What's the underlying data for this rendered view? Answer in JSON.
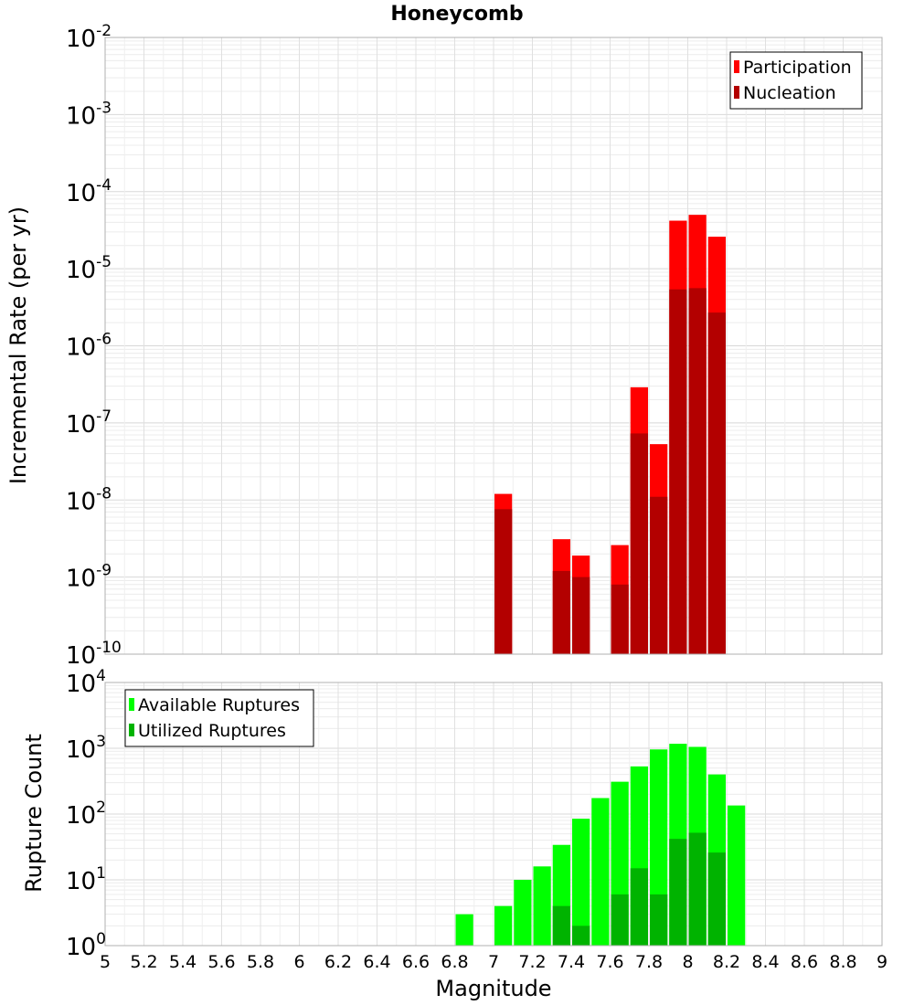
{
  "chart_data": [
    {
      "type": "bar",
      "title": "Honeycomb",
      "ylabel": "Incremental Rate (per yr)",
      "xlabel": "",
      "yscale": "log",
      "ylim_exp": [
        -10,
        -2
      ],
      "xlim": [
        5,
        9
      ],
      "bin_width": 0.1,
      "legend_position": "top-right",
      "grid": true,
      "series": [
        {
          "name": "Participation",
          "color": "#ff0000",
          "points": [
            {
              "x": 7.05,
              "y": 1.2e-08
            },
            {
              "x": 7.35,
              "y": 3.1e-09
            },
            {
              "x": 7.45,
              "y": 1.9e-09
            },
            {
              "x": 7.65,
              "y": 2.6e-09
            },
            {
              "x": 7.75,
              "y": 2.9e-07
            },
            {
              "x": 7.85,
              "y": 5.3e-08
            },
            {
              "x": 7.95,
              "y": 4.2e-05
            },
            {
              "x": 8.05,
              "y": 5e-05
            },
            {
              "x": 8.15,
              "y": 2.6e-05
            }
          ]
        },
        {
          "name": "Nucleation",
          "color": "#b30000",
          "points": [
            {
              "x": 7.05,
              "y": 7.6e-09
            },
            {
              "x": 7.35,
              "y": 1.2e-09
            },
            {
              "x": 7.45,
              "y": 1e-09
            },
            {
              "x": 7.65,
              "y": 8e-10
            },
            {
              "x": 7.75,
              "y": 7.3e-08
            },
            {
              "x": 7.85,
              "y": 1.1e-08
            },
            {
              "x": 7.95,
              "y": 5.4e-06
            },
            {
              "x": 8.05,
              "y": 5.6e-06
            },
            {
              "x": 8.15,
              "y": 2.7e-06
            }
          ]
        }
      ]
    },
    {
      "type": "bar",
      "title": "",
      "ylabel": "Rupture Count",
      "xlabel": "Magnitude",
      "yscale": "log",
      "ylim_exp": [
        0,
        4
      ],
      "xlim": [
        5,
        9
      ],
      "bin_width": 0.1,
      "legend_position": "top-left",
      "grid": true,
      "series": [
        {
          "name": "Available Ruptures",
          "color": "#00ff00",
          "points": [
            {
              "x": 6.85,
              "y": 3
            },
            {
              "x": 7.05,
              "y": 4
            },
            {
              "x": 7.15,
              "y": 10
            },
            {
              "x": 7.25,
              "y": 16
            },
            {
              "x": 7.35,
              "y": 34
            },
            {
              "x": 7.45,
              "y": 85
            },
            {
              "x": 7.55,
              "y": 175
            },
            {
              "x": 7.65,
              "y": 310
            },
            {
              "x": 7.75,
              "y": 530
            },
            {
              "x": 7.85,
              "y": 960
            },
            {
              "x": 7.95,
              "y": 1170
            },
            {
              "x": 8.05,
              "y": 1050
            },
            {
              "x": 8.15,
              "y": 400
            },
            {
              "x": 8.25,
              "y": 135
            }
          ]
        },
        {
          "name": "Utilized Ruptures",
          "color": "#00b300",
          "points": [
            {
              "x": 7.05,
              "y": 1
            },
            {
              "x": 7.15,
              "y": 1
            },
            {
              "x": 7.25,
              "y": 1
            },
            {
              "x": 7.35,
              "y": 4
            },
            {
              "x": 7.45,
              "y": 2
            },
            {
              "x": 7.55,
              "y": 1
            },
            {
              "x": 7.65,
              "y": 6
            },
            {
              "x": 7.75,
              "y": 15
            },
            {
              "x": 7.85,
              "y": 6
            },
            {
              "x": 7.95,
              "y": 42
            },
            {
              "x": 8.05,
              "y": 52
            },
            {
              "x": 8.15,
              "y": 26
            }
          ]
        }
      ]
    }
  ],
  "x_tick_labels": [
    "5",
    "5.2",
    "5.4",
    "5.6",
    "5.8",
    "6",
    "6.2",
    "6.4",
    "6.6",
    "6.8",
    "7",
    "7.2",
    "7.4",
    "7.6",
    "7.8",
    "8",
    "8.2",
    "8.4",
    "8.6",
    "8.8",
    "9"
  ]
}
